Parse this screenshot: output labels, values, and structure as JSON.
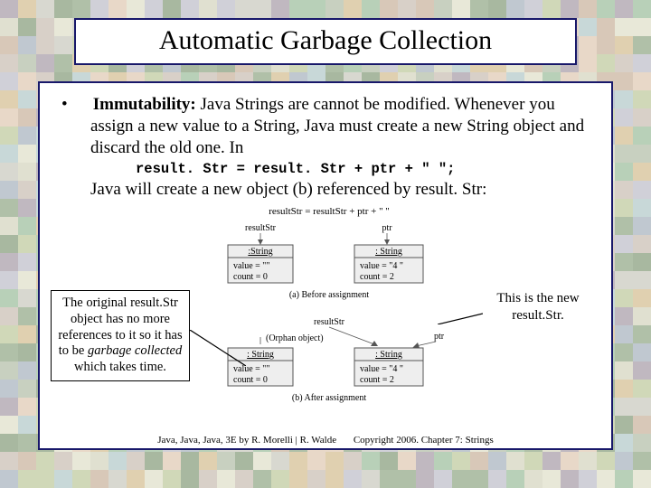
{
  "title": "Automatic Garbage Collection",
  "bullet": {
    "label": "Immutability:",
    "text": " Java Strings are cannot be modified. Whenever you assign a new value to a String, Java must create a new String object and discard the old one. In"
  },
  "code": "result. Str = result. Str + ptr + \" \";",
  "followup": "Java will create a new object (b) referenced by result. Str:",
  "callout_left": {
    "l1": "The original result.Str",
    "l2": "object has no more",
    "l3": "references to it so it has",
    "l4a": "to be ",
    "l4b": "garbage collected",
    "l5": "which takes time."
  },
  "callout_right": {
    "l1": "This is the new",
    "l2": "result.Str."
  },
  "diagram": {
    "code_top": "resultStr = resultStr + ptr + \"  \"",
    "box_string": ": String",
    "box_string_u": ":String",
    "before_left_v": "value = \"\"",
    "before_left_c": "count = 0",
    "before_right_v": "value = \"4 \"",
    "before_right_c": "count = 2",
    "caption_a": "(a) Before assignment",
    "orphan": "(Orphan object)",
    "after_left_v": "value = \"\"",
    "after_left_c": "count = 0",
    "after_right_v": "value = \"4 \"",
    "after_right_c": "count = 2",
    "caption_b": "(b) After assignment",
    "label_result": "resultStr",
    "label_ptr": "ptr"
  },
  "footer": {
    "left": "Java, Java, Java, 3E by R. Morelli | R. Walde",
    "right": "Copyright 2006.  Chapter 7: Strings"
  },
  "colors": {
    "border": "#18186a",
    "mosaic": [
      "#e8e8d8",
      "#d0d8b8",
      "#b8d0b8",
      "#c8d8d8",
      "#d8d0c8",
      "#e0e0d0",
      "#c0c8d0",
      "#d8c8b8",
      "#b0c0a8",
      "#e8d8c8",
      "#c8d0c0",
      "#d0d0d8",
      "#a8b8a0",
      "#e0d0b0",
      "#c0b8c0",
      "#d8d8d0"
    ]
  }
}
